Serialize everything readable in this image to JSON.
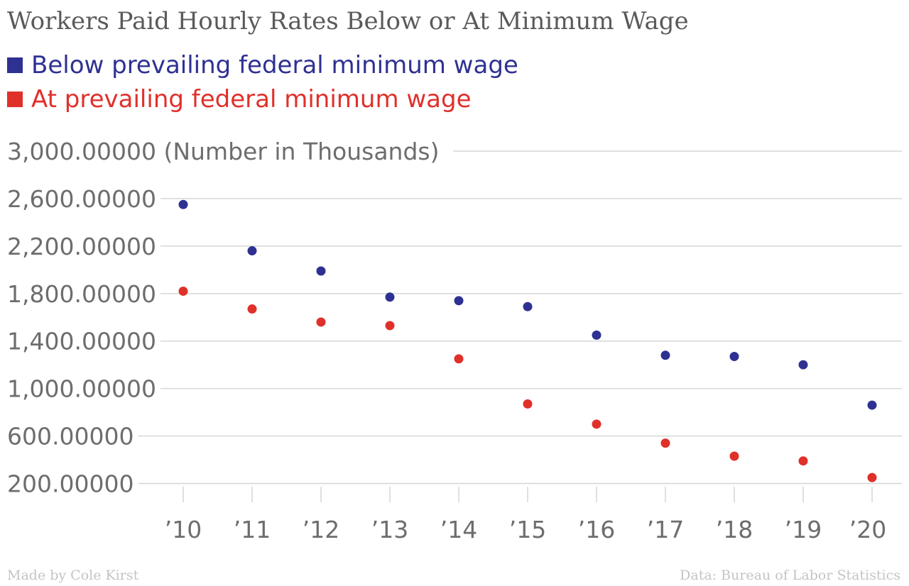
{
  "chart_data": {
    "type": "scatter",
    "title": "Workers Paid Hourly Rates Below or At Minimum Wage",
    "ylabel": "(Number in Thousands)",
    "ylim": [
      0,
      3000
    ],
    "yticks": [
      200,
      600,
      1000,
      1400,
      1800,
      2200,
      2600,
      3000
    ],
    "ytick_labels": [
      "200.00000",
      "600.00000",
      "1,000.00000",
      "1,400.00000",
      "1,800.00000",
      "2,200.00000",
      "2,600.00000",
      "3,000.00000"
    ],
    "categories": [
      "’10",
      "’11",
      "’12",
      "’13",
      "’14",
      "’15",
      "’16",
      "’17",
      "’18",
      "’19",
      "’20"
    ],
    "grid": true,
    "legend_position": "top-left",
    "series": [
      {
        "name": "Below prevailing federal minimum wage",
        "color": "#2e3192",
        "values": [
          2550,
          2160,
          1990,
          1770,
          1740,
          1690,
          1450,
          1280,
          1270,
          1200,
          860
        ]
      },
      {
        "name": "At prevailing federal minimum wage",
        "color": "#e0302a",
        "values": [
          1820,
          1670,
          1560,
          1530,
          1250,
          870,
          700,
          540,
          430,
          390,
          250
        ]
      }
    ]
  },
  "footer": {
    "credit": "Made by Cole Kirst",
    "source": "Data: Bureau of Labor Statistics"
  }
}
